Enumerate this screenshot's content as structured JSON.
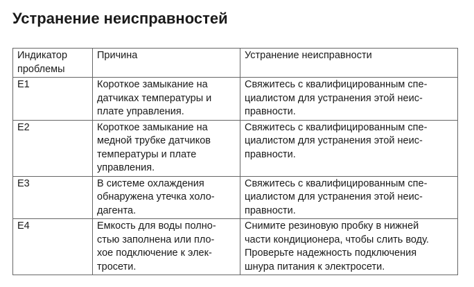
{
  "title": "Устранение неисправностей",
  "table": {
    "headers": [
      "Индикатор\nпроблемы",
      "Причина",
      "Устранение неисправности"
    ],
    "rows": [
      {
        "code": "E1",
        "cause": "Короткое замыкание на\nдатчиках температуры и\nплате управления.",
        "fix": "Свяжитесь с квалифицированным спе-\nциалистом для устранения этой неис-\nправности."
      },
      {
        "code": "E2",
        "cause": "Короткое замыкание на\nмедной трубке датчиков\nтемпературы и плате\nуправления.",
        "fix": "Свяжитесь с квалифицированным спе-\nциалистом для устранения этой неис-\nправности."
      },
      {
        "code": "E3",
        "cause": "В системе охлаждения\nобнаружена утечка холо-\nдагента.",
        "fix": "Свяжитесь с квалифицированным спе-\nциалистом для устранения этой неис-\nправности."
      },
      {
        "code": "E4",
        "cause": "Емкость для воды полно-\nстью заполнена или пло-\nхое подключение к элек-\nтросети.",
        "fix": "Снимите резиновую пробку в нижней\nчасти кондиционера, чтобы слить воду.\nПроверьте надежность подключения\nшнура питания к электросети."
      }
    ]
  }
}
